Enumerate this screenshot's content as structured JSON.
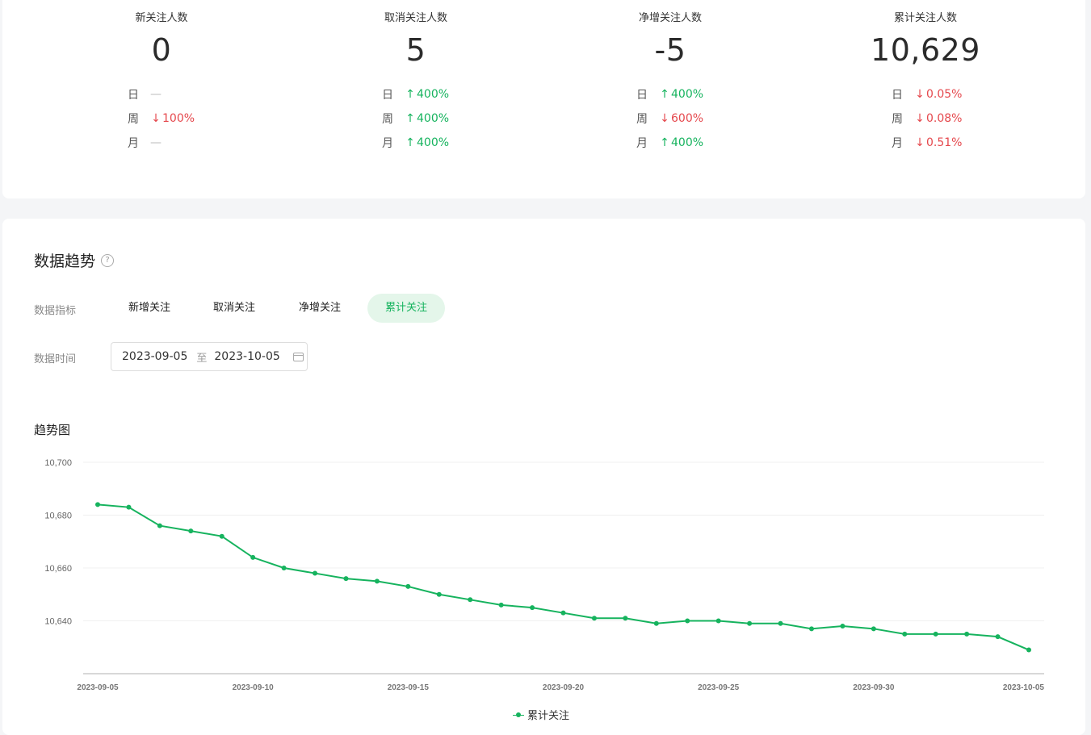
{
  "stats": [
    {
      "title": "新关注人数",
      "value": "0",
      "rows": [
        {
          "label": "日",
          "dir": "flat",
          "text": "—"
        },
        {
          "label": "周",
          "dir": "down",
          "text": "100%"
        },
        {
          "label": "月",
          "dir": "flat",
          "text": "—"
        }
      ]
    },
    {
      "title": "取消关注人数",
      "value": "5",
      "rows": [
        {
          "label": "日",
          "dir": "up",
          "text": "400%"
        },
        {
          "label": "周",
          "dir": "up",
          "text": "400%"
        },
        {
          "label": "月",
          "dir": "up",
          "text": "400%"
        }
      ]
    },
    {
      "title": "净增关注人数",
      "value": "-5",
      "rows": [
        {
          "label": "日",
          "dir": "up",
          "text": "400%"
        },
        {
          "label": "周",
          "dir": "down",
          "text": "600%"
        },
        {
          "label": "月",
          "dir": "up",
          "text": "400%"
        }
      ]
    },
    {
      "title": "累计关注人数",
      "value": "10,629",
      "rows": [
        {
          "label": "日",
          "dir": "down",
          "text": "0.05%"
        },
        {
          "label": "周",
          "dir": "down",
          "text": "0.08%"
        },
        {
          "label": "月",
          "dir": "down",
          "text": "0.51%"
        }
      ]
    }
  ],
  "trend": {
    "title": "数据趋势",
    "help_icon": "?",
    "metric_label": "数据指标",
    "metrics": [
      "新增关注",
      "取消关注",
      "净增关注",
      "累计关注"
    ],
    "active_metric": "累计关注",
    "time_label": "数据时间",
    "date_start": "2023-09-05",
    "date_sep": "至",
    "date_end": "2023-10-05",
    "chart_title": "趋势图"
  },
  "colors": {
    "accent": "#16b35e",
    "down": "#e5484d",
    "active_tab_bg": "#e4f6ea"
  },
  "chart_data": {
    "type": "line",
    "x": [
      "2023-09-05",
      "2023-09-06",
      "2023-09-07",
      "2023-09-08",
      "2023-09-09",
      "2023-09-10",
      "2023-09-11",
      "2023-09-12",
      "2023-09-13",
      "2023-09-14",
      "2023-09-15",
      "2023-09-16",
      "2023-09-17",
      "2023-09-18",
      "2023-09-19",
      "2023-09-20",
      "2023-09-21",
      "2023-09-22",
      "2023-09-23",
      "2023-09-24",
      "2023-09-25",
      "2023-09-26",
      "2023-09-27",
      "2023-09-28",
      "2023-09-29",
      "2023-09-30",
      "2023-10-01",
      "2023-10-02",
      "2023-10-03",
      "2023-10-04",
      "2023-10-05"
    ],
    "series": [
      {
        "name": "累计关注",
        "values": [
          10684,
          10683,
          10676,
          10674,
          10672,
          10664,
          10660,
          10658,
          10656,
          10655,
          10653,
          10650,
          10648,
          10646,
          10645,
          10643,
          10641,
          10641,
          10639,
          10640,
          10640,
          10639,
          10639,
          10637,
          10638,
          10637,
          10635,
          10635,
          10635,
          10634,
          10629
        ]
      }
    ],
    "x_ticks": [
      "2023-09-05",
      "2023-09-10",
      "2023-09-15",
      "2023-09-20",
      "2023-09-25",
      "2023-09-30",
      "2023-10-05"
    ],
    "y_ticks": [
      10640,
      10660,
      10680,
      10700
    ],
    "y_tick_labels": [
      "10,640",
      "10,660",
      "10,680",
      "10,700"
    ],
    "ylim": [
      10620,
      10700
    ],
    "grid": true,
    "legend": "bottom-center"
  }
}
